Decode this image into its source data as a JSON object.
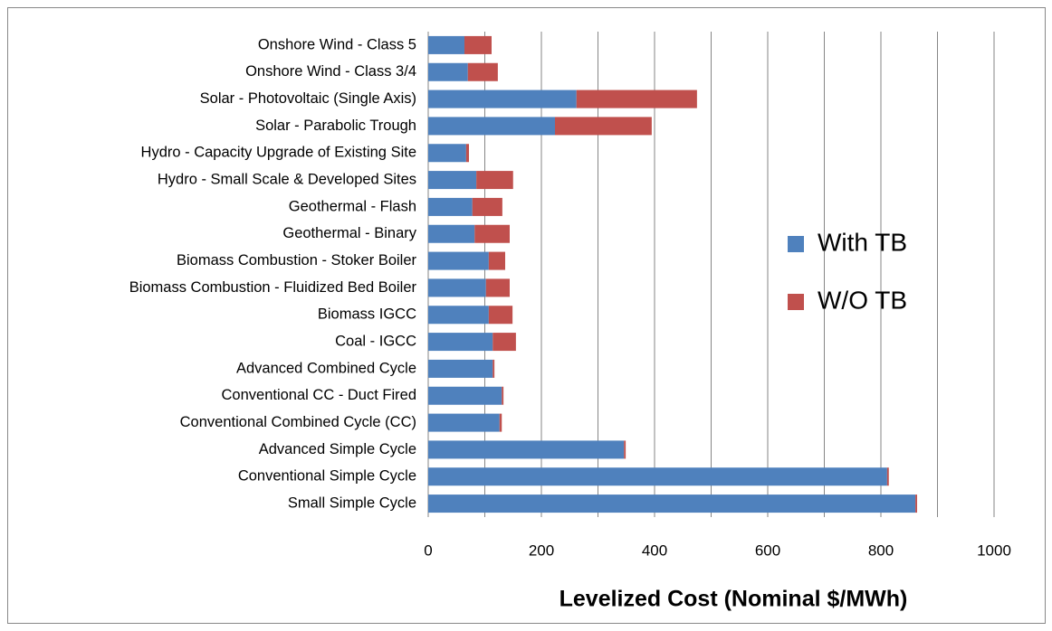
{
  "chart_data": {
    "type": "stacked-barh",
    "x_label": "Levelized Cost (Nominal $/MWh)",
    "categories": [
      "Onshore Wind - Class 5",
      "Onshore Wind - Class 3/4",
      "Solar - Photovoltaic (Single Axis)",
      "Solar - Parabolic Trough",
      "Hydro - Capacity Upgrade of Existing Site",
      "Hydro - Small Scale & Developed  Sites",
      "Geothermal - Flash",
      "Geothermal - Binary",
      "Biomass Combustion - Stoker Boiler",
      "Biomass Combustion - Fluidized Bed Boiler",
      "Biomass IGCC",
      "Coal - IGCC",
      "Advanced Combined Cycle",
      "Conventional CC - Duct Fired",
      "Conventional Combined Cycle (CC)",
      "Advanced Simple Cycle",
      "Conventional Simple Cycle",
      "Small Simple Cycle"
    ],
    "series": [
      {
        "name": "With TB",
        "color": "#4f81bd",
        "values": [
          64,
          70,
          262,
          224,
          67,
          85,
          78,
          82,
          107,
          102,
          107,
          114,
          114,
          130,
          126,
          346,
          811,
          861
        ]
      },
      {
        "name": "W/O TB",
        "color": "#c0504d",
        "values": [
          48,
          53,
          213,
          171,
          5,
          65,
          53,
          62,
          29,
          42,
          42,
          41,
          3,
          3,
          4,
          3,
          3,
          3
        ]
      }
    ],
    "xlim": [
      0,
      1000
    ],
    "xticks": [
      0,
      200,
      400,
      600,
      800,
      1000
    ],
    "xgrid": [
      100,
      200,
      300,
      400,
      500,
      600,
      700,
      800,
      900,
      1000
    ],
    "legend": "right"
  }
}
